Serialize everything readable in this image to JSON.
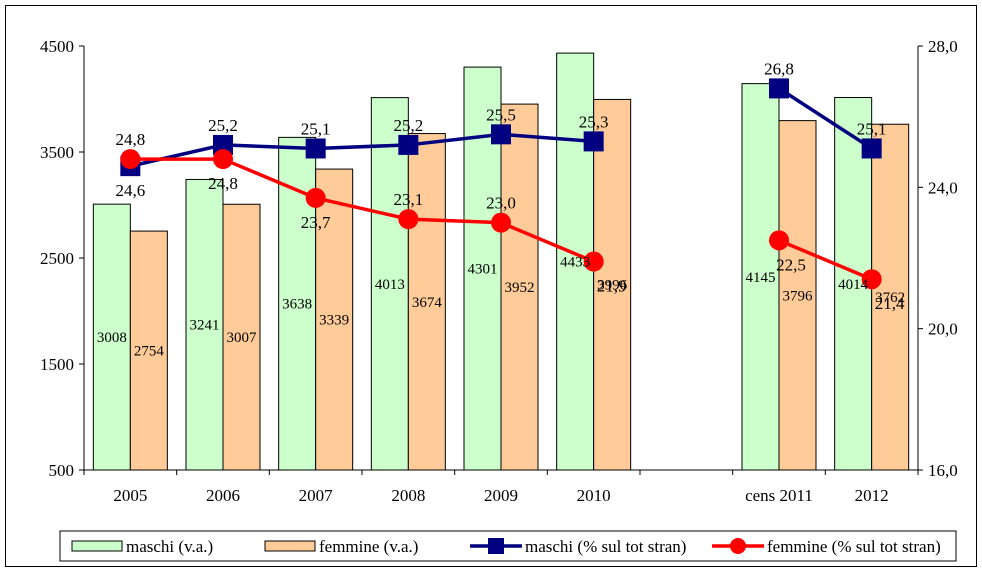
{
  "colors": {
    "maschi_bar": "#ccffcc",
    "femmine_bar": "#ffcc99",
    "maschi_line": "#000080",
    "femmine_line": "#ff0000"
  },
  "chart_data": {
    "type": "bar+line",
    "title": "",
    "categories": [
      "2005",
      "2006",
      "2007",
      "2008",
      "2009",
      "2010",
      "",
      "cens 2011",
      "2012"
    ],
    "y_left": {
      "min": 500,
      "max": 4500,
      "ticks": [
        "500",
        "1500",
        "2500",
        "3500",
        "4500"
      ]
    },
    "y_right": {
      "min": 16.0,
      "max": 28.0,
      "ticks": [
        "16,0",
        "20,0",
        "24,0",
        "28,0"
      ]
    },
    "series": [
      {
        "name": "maschi (v.a.)",
        "kind": "bar",
        "axis": "left",
        "values": [
          3008,
          3241,
          3638,
          4013,
          4301,
          4433,
          null,
          4145,
          4014
        ],
        "labels": [
          "3008",
          "3241",
          "3638",
          "4013",
          "4301",
          "4433",
          "",
          "4145",
          "4014"
        ]
      },
      {
        "name": "femmine (v.a.)",
        "kind": "bar",
        "axis": "left",
        "values": [
          2754,
          3007,
          3339,
          3674,
          3952,
          3996,
          null,
          3796,
          3762
        ],
        "labels": [
          "2754",
          "3007",
          "3339",
          "3674",
          "3952",
          "3996",
          "",
          "3796",
          "3762"
        ]
      },
      {
        "name": "maschi (% sul tot stran)",
        "kind": "line",
        "axis": "right",
        "values": [
          24.6,
          25.2,
          25.1,
          25.2,
          25.5,
          25.3,
          null,
          26.8,
          25.1
        ],
        "labels": [
          "24,6",
          "25,2",
          "25,1",
          "25,2",
          "25,5",
          "25,3",
          "",
          "26,8",
          "25,1"
        ]
      },
      {
        "name": "femmine (% sul tot stran)",
        "kind": "line",
        "axis": "right",
        "values": [
          24.8,
          24.8,
          23.7,
          23.1,
          23.0,
          21.9,
          null,
          22.5,
          21.4
        ],
        "labels": [
          "24,8",
          "24,8",
          "23,7",
          "23,1",
          "23,0",
          "21,9",
          "",
          "22,5",
          "21,4"
        ]
      }
    ],
    "legend_position": "bottom",
    "grid": false
  }
}
